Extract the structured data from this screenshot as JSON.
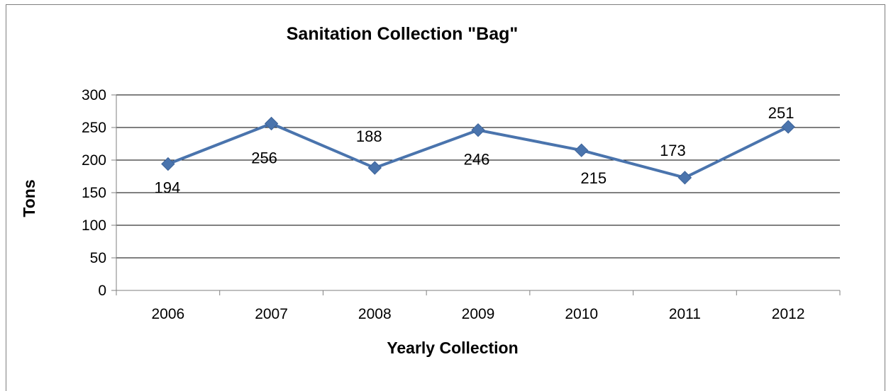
{
  "chart_data": {
    "type": "line",
    "title": "Sanitation Collection \"Bag\"",
    "xlabel": "Yearly Collection",
    "ylabel": "Tons",
    "categories": [
      "2006",
      "2007",
      "2008",
      "2009",
      "2010",
      "2011",
      "2012"
    ],
    "values": [
      194,
      256,
      188,
      246,
      215,
      173,
      251
    ],
    "ylim": [
      0,
      300
    ],
    "yticks": [
      0,
      50,
      100,
      150,
      200,
      250,
      300
    ],
    "grid": true,
    "legend": "none",
    "colors": {
      "line": "#4a74ad",
      "marker": "#4a74ad",
      "grid": "#000000",
      "axis": "#7f7f7f"
    }
  }
}
